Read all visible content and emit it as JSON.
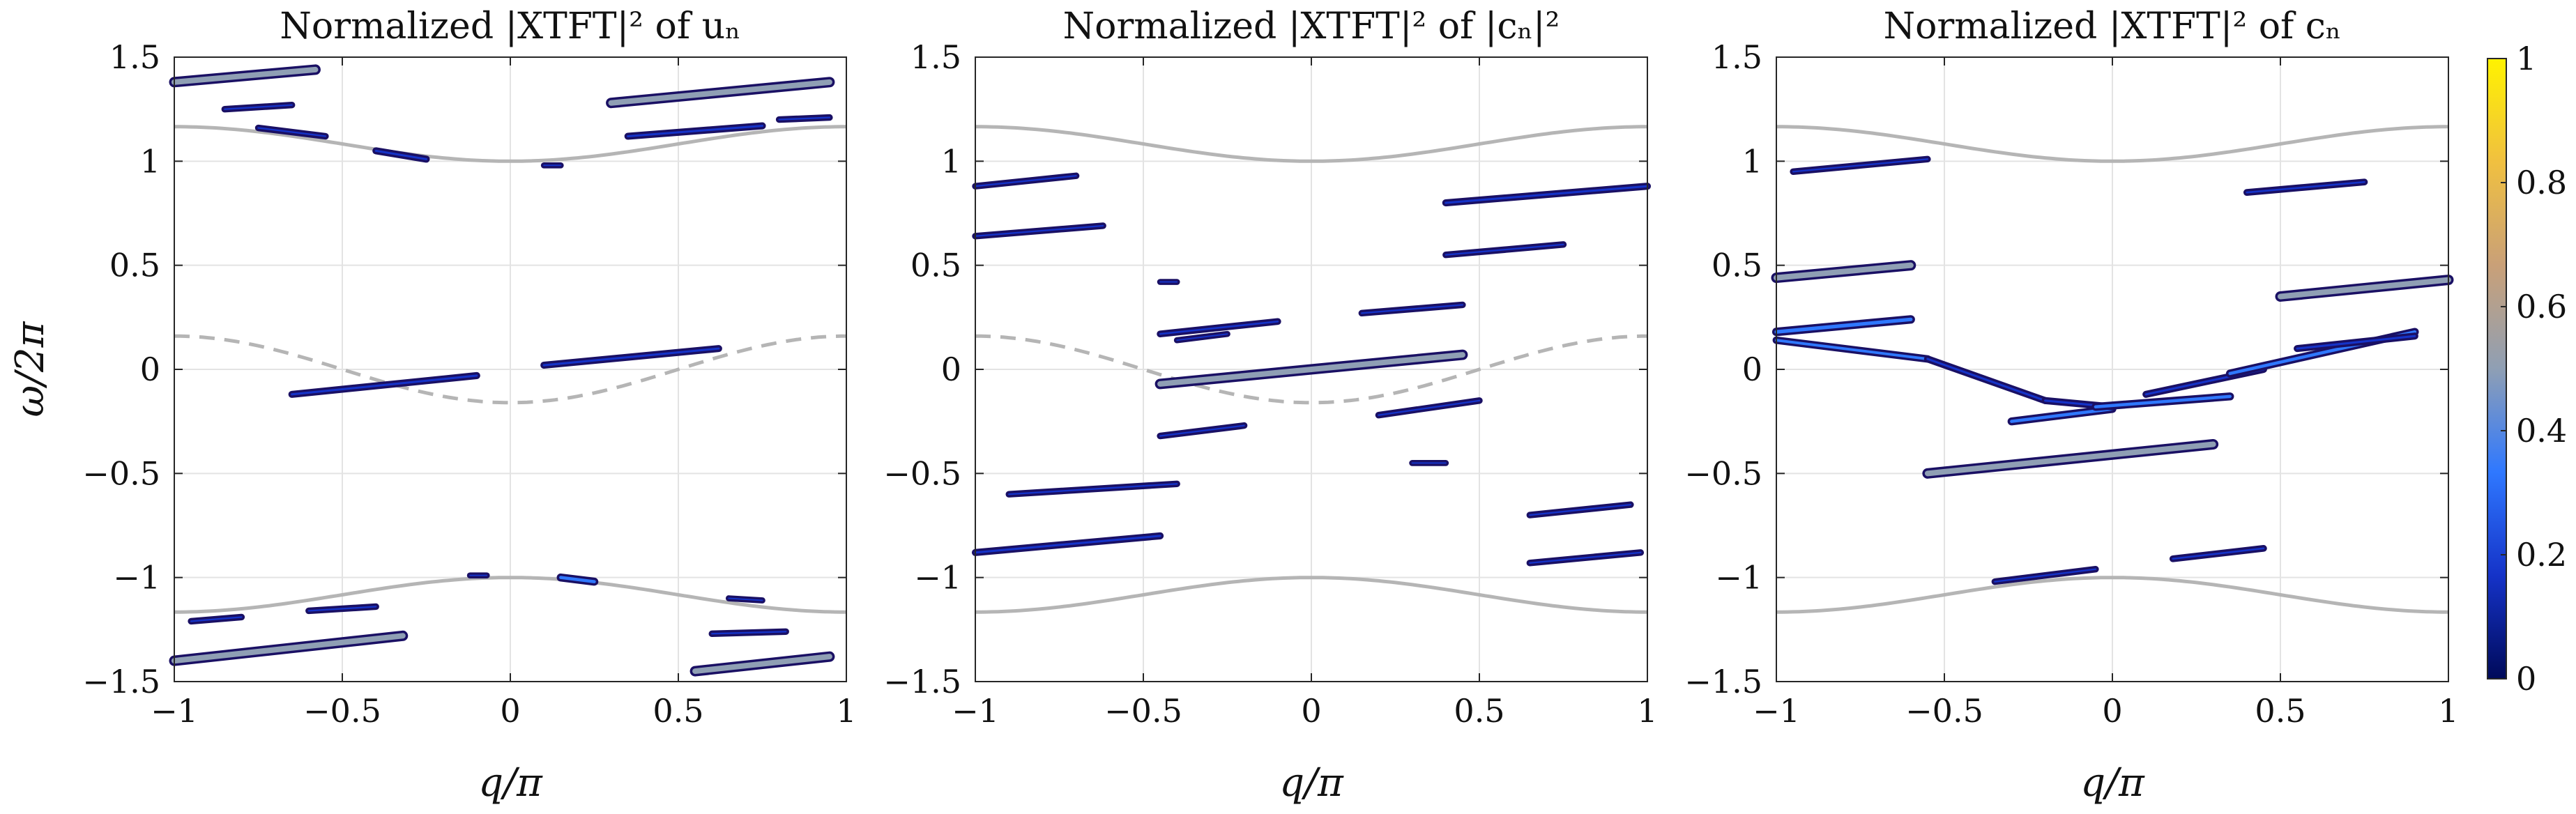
{
  "figure": {
    "ylabel": "ω/2π",
    "colorbar": {
      "ticks": [
        "0",
        "0.2",
        "0.4",
        "0.6",
        "0.8",
        "1"
      ],
      "colormap": [
        "#000a5a",
        "#1533c8",
        "#2f78ff",
        "#8f9fb4",
        "#c9a078",
        "#f0c040",
        "#fff200"
      ]
    },
    "colors": {
      "axis": "#262626",
      "grid": "#e3e3e3",
      "band": "#b5b5b5"
    }
  },
  "chart_data": [
    {
      "type": "heatmap",
      "title": "Normalized |XTFT|² of uₙ",
      "xlabel": "q/π",
      "xlim": [
        -1,
        1
      ],
      "ylim": [
        -1.5,
        1.5
      ],
      "xticks": [
        "−1",
        "−0.5",
        "0",
        "0.5",
        "1"
      ],
      "yticks": [
        "−1.5",
        "−1",
        "−0.5",
        "0",
        "0.5",
        "1",
        "1.5"
      ],
      "grid": true,
      "bands": {
        "solid": true,
        "dashed": true
      },
      "streaks": [
        [
          -1.0,
          1.38,
          -0.58,
          1.44,
          0.5
        ],
        [
          -0.85,
          1.25,
          -0.65,
          1.27,
          0.1
        ],
        [
          -0.75,
          1.16,
          -0.55,
          1.12,
          0.1
        ],
        [
          -0.4,
          1.05,
          -0.25,
          1.01,
          0.15
        ],
        [
          0.1,
          0.98,
          0.15,
          0.98,
          0.05
        ],
        [
          0.3,
          1.28,
          0.95,
          1.38,
          0.5
        ],
        [
          0.35,
          1.12,
          0.75,
          1.17,
          0.15
        ],
        [
          0.8,
          1.2,
          0.95,
          1.21,
          0.1
        ],
        [
          -0.65,
          -0.12,
          -0.1,
          -0.03,
          0.15
        ],
        [
          0.1,
          0.02,
          0.62,
          0.1,
          0.15
        ],
        [
          -1.0,
          -1.4,
          -0.32,
          -1.28,
          0.5
        ],
        [
          -0.95,
          -1.21,
          -0.8,
          -1.19,
          0.1
        ],
        [
          -0.6,
          -1.16,
          -0.4,
          -1.14,
          0.1
        ],
        [
          0.15,
          -1.0,
          0.25,
          -1.02,
          0.25
        ],
        [
          -0.12,
          -0.99,
          -0.07,
          -0.99,
          0.05
        ],
        [
          0.65,
          -1.1,
          0.75,
          -1.11,
          0.05
        ],
        [
          0.6,
          -1.27,
          0.82,
          -1.26,
          0.1
        ],
        [
          0.55,
          -1.45,
          0.95,
          -1.38,
          0.5
        ]
      ]
    },
    {
      "type": "heatmap",
      "title": "Normalized |XTFT|² of |cₙ|²",
      "xlabel": "q/π",
      "xlim": [
        -1,
        1
      ],
      "ylim": [
        -1.5,
        1.5
      ],
      "xticks": [
        "−1",
        "−0.5",
        "0",
        "0.5",
        "1"
      ],
      "yticks": [
        "−1.5",
        "−1",
        "−0.5",
        "0",
        "0.5",
        "1",
        "1.5"
      ],
      "grid": true,
      "bands": {
        "solid": true,
        "dashed": true
      },
      "streaks": [
        [
          -1.0,
          0.88,
          -0.7,
          0.93,
          0.1
        ],
        [
          -1.0,
          0.64,
          -0.62,
          0.69,
          0.1
        ],
        [
          -0.45,
          0.42,
          -0.4,
          0.42,
          0.05
        ],
        [
          -0.4,
          0.14,
          -0.25,
          0.17,
          0.05
        ],
        [
          -0.45,
          0.17,
          -0.1,
          0.23,
          0.12
        ],
        [
          -0.45,
          -0.07,
          0.45,
          0.07,
          0.5
        ],
        [
          -0.45,
          -0.32,
          -0.2,
          -0.27,
          0.1
        ],
        [
          0.15,
          0.27,
          0.45,
          0.31,
          0.1
        ],
        [
          0.4,
          0.55,
          0.75,
          0.6,
          0.1
        ],
        [
          0.4,
          0.8,
          1.0,
          0.88,
          0.15
        ],
        [
          0.2,
          -0.22,
          0.5,
          -0.15,
          0.1
        ],
        [
          -0.9,
          -0.6,
          -0.4,
          -0.55,
          0.1
        ],
        [
          -1.0,
          -0.88,
          -0.45,
          -0.8,
          0.15
        ],
        [
          0.3,
          -0.45,
          0.4,
          -0.45,
          0.05
        ],
        [
          0.65,
          -0.7,
          0.95,
          -0.65,
          0.1
        ],
        [
          0.65,
          -0.93,
          0.98,
          -0.88,
          0.1
        ]
      ]
    },
    {
      "type": "heatmap",
      "title": "Normalized |XTFT|² of cₙ",
      "xlabel": "q/π",
      "xlim": [
        -1,
        1
      ],
      "ylim": [
        -1.5,
        1.5
      ],
      "xticks": [
        "−1",
        "−0.5",
        "0",
        "0.5",
        "1"
      ],
      "yticks": [
        "−1.5",
        "−1",
        "−0.5",
        "0",
        "0.5",
        "1",
        "1.5"
      ],
      "grid": true,
      "bands": {
        "solid": true,
        "dashed": false
      },
      "streaks": [
        [
          -0.95,
          0.95,
          -0.55,
          1.01,
          0.1
        ],
        [
          -1.0,
          0.44,
          -0.6,
          0.5,
          0.5
        ],
        [
          -1.0,
          0.18,
          -0.6,
          0.24,
          0.3
        ],
        [
          -1.0,
          0.14,
          -0.55,
          0.05,
          0.2
        ],
        [
          -0.55,
          0.05,
          -0.2,
          -0.15,
          0.15
        ],
        [
          -0.3,
          -0.25,
          0.0,
          -0.19,
          0.25
        ],
        [
          -0.2,
          -0.15,
          0.0,
          -0.18,
          0.15
        ],
        [
          -0.05,
          -0.18,
          0.35,
          -0.13,
          0.25
        ],
        [
          0.1,
          -0.12,
          0.45,
          0.0,
          0.15
        ],
        [
          0.35,
          -0.02,
          0.9,
          0.18,
          0.25
        ],
        [
          0.55,
          0.1,
          0.9,
          0.16,
          0.15
        ],
        [
          0.5,
          0.35,
          1.0,
          0.43,
          0.5
        ],
        [
          0.4,
          0.85,
          0.75,
          0.9,
          0.12
        ],
        [
          -0.55,
          -0.5,
          0.3,
          -0.36,
          0.5
        ],
        [
          -0.35,
          -1.02,
          -0.05,
          -0.96,
          0.1
        ],
        [
          0.18,
          -0.91,
          0.45,
          -0.86,
          0.12
        ]
      ]
    }
  ]
}
